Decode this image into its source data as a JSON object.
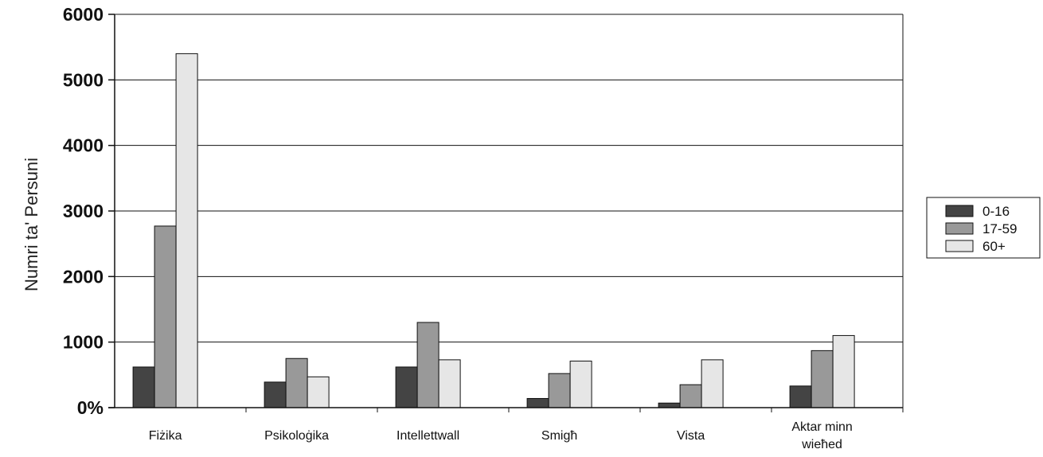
{
  "chart_data": {
    "type": "bar",
    "ylabel": "Numri ta' Persuni",
    "xlabel": "",
    "ylim": [
      0,
      6000
    ],
    "yticks": [
      {
        "value": 0,
        "label": "0%"
      },
      {
        "value": 1000,
        "label": "1000"
      },
      {
        "value": 2000,
        "label": "2000"
      },
      {
        "value": 3000,
        "label": "3000"
      },
      {
        "value": 4000,
        "label": "4000"
      },
      {
        "value": 5000,
        "label": "5000"
      },
      {
        "value": 6000,
        "label": "6000"
      }
    ],
    "categories": [
      "Fiżika",
      "Psikoloġika",
      "Intellettwall",
      "Smigħ",
      "Vista",
      [
        "Aktar minn",
        "wieħed"
      ]
    ],
    "series": [
      {
        "name": "0-16",
        "color": "#444444",
        "values": [
          620,
          390,
          620,
          140,
          70,
          330
        ]
      },
      {
        "name": "17-59",
        "color": "#999999",
        "values": [
          2770,
          750,
          1300,
          520,
          350,
          870
        ]
      },
      {
        "name": "60+",
        "color": "#e6e6e6",
        "values": [
          5400,
          470,
          730,
          710,
          730,
          1100
        ]
      }
    ],
    "grid": true,
    "legend_position": "right"
  }
}
